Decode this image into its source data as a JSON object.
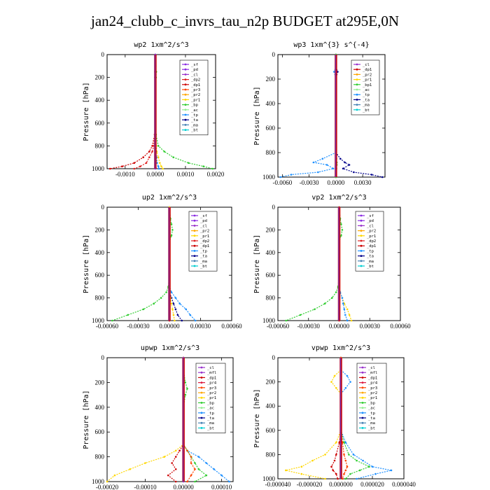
{
  "title": "jan24_clubb_c_invrs_tau_n2p  BUDGET at295E,0N",
  "colors": {
    "sf": "#8a2be2",
    "pd": "#8a2be2",
    "cl": "#9932cc",
    "mfl": "#9932cc",
    "dp1": "#cc0000",
    "dp2": "#e02020",
    "pr1": "#ffd700",
    "pr2": "#ffa500",
    "pr3": "#ff4500",
    "pr4": "#dc143c",
    "bp": "#32cd32",
    "bp1": "#32cd32",
    "ac": "#90ee90",
    "tp": "#1e90ff",
    "ta": "#00008b",
    "ma": "#4682b4",
    "bt": "#00ced1"
  },
  "chart_data": [
    {
      "type": "line",
      "title": "wp2  1xm^2/s^3",
      "ylabel": "Pressure [hPa]",
      "xlim": [
        -0.0016,
        0.002
      ],
      "ylim": [
        1000,
        0
      ],
      "xticks": [
        "-0.0010",
        "0.0000",
        "0.0010",
        "0.0020"
      ],
      "xtick_values": [
        -0.001,
        0.0,
        0.001,
        0.002
      ],
      "yticks": [
        "0",
        "200",
        "400",
        "600",
        "800",
        "1000"
      ],
      "y": [
        0,
        100,
        150,
        200,
        300,
        400,
        500,
        600,
        700,
        800,
        850,
        900,
        950,
        980,
        1000
      ],
      "legend": [
        "_sf",
        "_pd",
        "_cl",
        "_dp2",
        "_dp1",
        "_pr3",
        "_pr2",
        "_pr1",
        "_bp",
        "_ac",
        "_tp",
        "_ta",
        "_ma",
        "_bt"
      ],
      "series": [
        {
          "name": "_bp",
          "key": "bp",
          "values": [
            0,
            1e-05,
            3e-05,
            2e-05,
            0,
            0,
            0,
            0,
            2e-05,
            0.0001,
            0.0003,
            0.0006,
            0.0011,
            0.0016,
            0.0019
          ]
        },
        {
          "name": "_dp1",
          "key": "dp1",
          "values": [
            0,
            0,
            -1e-05,
            -1e-05,
            0,
            0,
            0,
            0,
            -2e-05,
            -0.0001,
            -0.0002,
            -0.0004,
            -0.0007,
            -0.0011,
            -0.0015
          ]
        },
        {
          "name": "_dp2",
          "key": "dp2",
          "values": [
            0,
            0,
            0,
            0,
            0,
            0,
            0,
            0,
            -1e-05,
            -5e-05,
            -0.0001,
            -0.0002,
            -0.0003,
            -0.0005,
            -0.0007
          ]
        },
        {
          "name": "_pr1",
          "key": "pr1",
          "values": [
            0,
            0,
            0,
            0,
            0,
            0,
            0,
            0,
            1e-05,
            3e-05,
            5e-05,
            0.0001,
            0.00015,
            0.0002,
            0.00025
          ]
        },
        {
          "name": "_tp",
          "key": "tp",
          "values": [
            0,
            0,
            0,
            0,
            0,
            0,
            0,
            0,
            0,
            1e-05,
            2e-05,
            4e-05,
            6e-05,
            0.0001,
            0.00012
          ]
        },
        {
          "name": "_pd",
          "key": "pd",
          "values": [
            0,
            0,
            0,
            0,
            0,
            0,
            0,
            0,
            0,
            0,
            0,
            0,
            0,
            0,
            0
          ]
        }
      ]
    },
    {
      "type": "line",
      "title": "wp3  1xm^{3} s^{-4}",
      "ylabel": "Pressure [hPa]",
      "xlim": [
        -0.0065,
        0.0055
      ],
      "ylim": [
        1000,
        0
      ],
      "xticks": [
        "-0.0060",
        "-0.0030",
        "0.0000",
        "0.0030"
      ],
      "xtick_values": [
        -0.006,
        -0.003,
        0.0,
        0.003
      ],
      "yticks": [
        "0",
        "200",
        "400",
        "600",
        "800",
        "1000"
      ],
      "y": [
        0,
        100,
        140,
        200,
        300,
        400,
        500,
        600,
        700,
        800,
        850,
        880,
        900,
        930,
        960,
        980,
        1000
      ],
      "legend": [
        "_cl",
        "_dp1",
        "_pr2",
        "_pr1",
        "_bp1",
        "_ac",
        "_tp",
        "_ta",
        "_ma",
        "_bt"
      ],
      "series": [
        {
          "name": "_tp",
          "key": "tp",
          "values": [
            0,
            0,
            -0.0002,
            0,
            0,
            0,
            0,
            0,
            0,
            0,
            -0.0015,
            -0.0025,
            -0.001,
            -0.0003,
            -0.002,
            -0.005,
            -0.0062
          ]
        },
        {
          "name": "_ta",
          "key": "ta",
          "values": [
            0,
            0,
            0.0002,
            0,
            0,
            0,
            0,
            0,
            0,
            0,
            0.0005,
            0.001,
            0.0015,
            0.0008,
            0.002,
            0.004,
            0.0052
          ]
        },
        {
          "name": "_dp1",
          "key": "dp1",
          "values": [
            0,
            0,
            0,
            0,
            0,
            0,
            0,
            0,
            0,
            0,
            0,
            0,
            0,
            0,
            0,
            0,
            0
          ]
        },
        {
          "name": "_bp1",
          "key": "bp1",
          "values": [
            0,
            0,
            0,
            0,
            0,
            0,
            0,
            0,
            0,
            0,
            5e-05,
            0.0001,
            0.0001,
            5e-05,
            0,
            0,
            0
          ]
        }
      ]
    },
    {
      "type": "line",
      "title": "up2  1xm^2/s^3",
      "ylabel": "Pressure [hPa]",
      "xlim": [
        -0.0006,
        0.0006
      ],
      "ylim": [
        1000,
        0
      ],
      "xticks": [
        "-0.00060",
        "-0.00030",
        "0.00000",
        "0.00030",
        "0.00060"
      ],
      "xtick_values": [
        -0.0006,
        -0.0003,
        0.0,
        0.0003,
        0.0006
      ],
      "yticks": [
        "0",
        "200",
        "400",
        "600",
        "800",
        "1000"
      ],
      "y": [
        0,
        100,
        150,
        200,
        250,
        300,
        400,
        500,
        600,
        700,
        750,
        800,
        850,
        900,
        950,
        1000
      ],
      "legend": [
        "_sf",
        "_pd",
        "_cl",
        "_pr2",
        "_pr1",
        "_dp2",
        "_dp1",
        "_tp",
        "_ta",
        "_ma",
        "_bt"
      ],
      "series": [
        {
          "name": "_dp2",
          "key": "bp",
          "values": [
            0,
            1e-05,
            2e-05,
            3e-05,
            2e-05,
            0,
            0,
            0,
            0,
            -1e-05,
            -3e-05,
            -8e-05,
            -0.00015,
            -0.00025,
            -0.0004,
            -0.00055
          ]
        },
        {
          "name": "_tp",
          "key": "tp",
          "values": [
            0,
            0,
            0,
            0,
            0,
            0,
            0,
            0,
            0,
            0,
            2e-05,
            6e-05,
            0.0001,
            0.00016,
            0.0002,
            0.00025
          ]
        },
        {
          "name": "_ta",
          "key": "ta",
          "values": [
            0,
            0,
            0,
            0,
            0,
            0,
            0,
            0,
            0,
            0,
            0,
            2e-05,
            4e-05,
            6e-05,
            8e-05,
            0.00012
          ]
        },
        {
          "name": "_dp1",
          "key": "dp1",
          "values": [
            0,
            0,
            0,
            0,
            0,
            0,
            0,
            0,
            0,
            0,
            0,
            0,
            0,
            0,
            0,
            0
          ]
        },
        {
          "name": "_pr1",
          "key": "pr1",
          "values": [
            0,
            0,
            0,
            0,
            0,
            0,
            0,
            0,
            0,
            0,
            0,
            1e-05,
            2e-05,
            3e-05,
            4e-05,
            5e-05
          ]
        }
      ]
    },
    {
      "type": "line",
      "title": "vp2  1xm^2/s^3",
      "ylabel": "Pressure [hPa]",
      "xlim": [
        -0.0006,
        0.0006
      ],
      "ylim": [
        1000,
        0
      ],
      "xticks": [
        "-0.00060",
        "-0.00030",
        "0.00000",
        "0.00030",
        "0.00060"
      ],
      "xtick_values": [
        -0.0006,
        -0.0003,
        0.0,
        0.0003,
        0.0006
      ],
      "yticks": [
        "0",
        "200",
        "400",
        "600",
        "800",
        "1000"
      ],
      "y": [
        0,
        100,
        150,
        200,
        250,
        300,
        400,
        500,
        600,
        700,
        750,
        800,
        850,
        900,
        950,
        1000
      ],
      "legend": [
        "_sf",
        "_pd",
        "_cl",
        "_pr2",
        "_pr1",
        "_dp2",
        "_dp1",
        "_tp",
        "_ta",
        "_ma",
        "_bt"
      ],
      "series": [
        {
          "name": "_dp2",
          "key": "bp",
          "values": [
            0,
            1e-05,
            2e-05,
            3e-05,
            2e-05,
            0,
            0,
            0,
            0,
            -1e-05,
            -3e-05,
            -7e-05,
            -0.00014,
            -0.00024,
            -0.00038,
            -0.00052
          ]
        },
        {
          "name": "_pr1",
          "key": "pr1",
          "values": [
            0,
            0,
            0,
            0,
            0,
            0,
            0,
            0,
            0,
            0,
            1e-05,
            3e-05,
            5e-05,
            8e-05,
            0.0001,
            0.00012
          ]
        },
        {
          "name": "_tp",
          "key": "tp",
          "values": [
            0,
            0,
            0,
            0,
            0,
            0,
            0,
            0,
            0,
            0,
            1e-05,
            3e-05,
            4e-05,
            5e-05,
            6e-05,
            8e-05
          ]
        },
        {
          "name": "_dp1",
          "key": "dp1",
          "values": [
            0,
            0,
            0,
            0,
            0,
            0,
            0,
            0,
            0,
            0,
            0,
            0,
            0,
            0,
            0,
            0
          ]
        }
      ]
    },
    {
      "type": "line",
      "title": "upwp  1xm^2/s^3",
      "ylabel": "Pressure [hPa]",
      "xlim": [
        -0.0002,
        0.00013
      ],
      "ylim": [
        1000,
        0
      ],
      "xticks": [
        "-0.00020",
        "-0.00010",
        "0.00000",
        "0.00010"
      ],
      "xtick_values": [
        -0.0002,
        -0.0001,
        0.0,
        0.0001
      ],
      "yticks": [
        "0",
        "200",
        "400",
        "600",
        "800",
        "1000"
      ],
      "y": [
        0,
        100,
        200,
        250,
        300,
        400,
        500,
        600,
        700,
        750,
        800,
        850,
        900,
        950,
        1000
      ],
      "legend": [
        "_cl",
        "_mfl",
        "_dp1",
        "_pr4",
        "_pr3",
        "_pr2",
        "_pr1",
        "_bp",
        "_ac",
        "_tp",
        "_ta",
        "_ma",
        "_bt"
      ],
      "series": [
        {
          "name": "_pr1",
          "key": "pr1",
          "values": [
            0,
            0,
            0,
            0,
            0,
            0,
            0,
            0,
            0,
            -2e-05,
            -5e-05,
            -0.0001,
            -0.00014,
            -0.00018,
            -0.0002
          ]
        },
        {
          "name": "_tp",
          "key": "tp",
          "values": [
            0,
            0,
            0,
            0,
            0,
            0,
            0,
            0,
            0,
            1e-05,
            4e-05,
            6e-05,
            8e-05,
            0.0001,
            0.00012
          ]
        },
        {
          "name": "_bp",
          "key": "bp",
          "values": [
            0,
            0,
            5e-06,
            1e-05,
            5e-06,
            0,
            0,
            0,
            0,
            1e-05,
            2e-05,
            3e-05,
            4e-05,
            6e-05,
            3e-05
          ]
        },
        {
          "name": "_dp1",
          "key": "dp1",
          "values": [
            0,
            0,
            0,
            0,
            0,
            0,
            0,
            0,
            0,
            -1e-05,
            -2e-05,
            -3e-05,
            -2e-05,
            -4e-05,
            -2e-05
          ]
        },
        {
          "name": "_pr3",
          "key": "pr3",
          "values": [
            0,
            0,
            0,
            0,
            0,
            0,
            0,
            0,
            0,
            1e-05,
            2e-05,
            2e-05,
            3e-05,
            2e-05,
            1e-05
          ]
        },
        {
          "name": "_cl",
          "key": "cl",
          "values": [
            0,
            0,
            0,
            0,
            0,
            0,
            0,
            0,
            0,
            0,
            0,
            0,
            0,
            0,
            0
          ]
        }
      ]
    },
    {
      "type": "line",
      "title": "vpwp  1xm^2/s^3",
      "ylabel": "Pressure [hPa]",
      "xlim": [
        -4e-05,
        4e-05
      ],
      "ylim": [
        1000,
        0
      ],
      "xticks": [
        "-0.000040",
        "-0.000020",
        "0.000000",
        "0.000020",
        "0.000040"
      ],
      "xtick_values": [
        -4e-05,
        -2e-05,
        0.0,
        2e-05,
        4e-05
      ],
      "yticks": [
        "0",
        "200",
        "400",
        "600",
        "800",
        "1000"
      ],
      "y": [
        0,
        100,
        150,
        200,
        250,
        300,
        400,
        500,
        600,
        700,
        800,
        850,
        900,
        930,
        960,
        1000
      ],
      "legend": [
        "_cl",
        "_mfl",
        "_dp1",
        "_pr4",
        "_pr3",
        "_pr2",
        "_pr1",
        "_bp",
        "_ac",
        "_tp",
        "_ta",
        "_ma",
        "_bt"
      ],
      "series": [
        {
          "name": "_pr1",
          "key": "pr1",
          "values": [
            0,
            0,
            -4e-06,
            -6e-06,
            -3e-06,
            0,
            0,
            0,
            0,
            -3e-06,
            -1e-05,
            -1.8e-05,
            -2.5e-05,
            -3.5e-05,
            -2.5e-05,
            -1e-05
          ]
        },
        {
          "name": "_tp",
          "key": "tp",
          "values": [
            0,
            0,
            4e-06,
            6e-06,
            3e-06,
            0,
            0,
            0,
            0,
            3e-06,
            8e-06,
            1.4e-05,
            2e-05,
            3.2e-05,
            2.2e-05,
            1e-05
          ]
        },
        {
          "name": "_bp",
          "key": "bp",
          "values": [
            0,
            0,
            0,
            0,
            0,
            0,
            0,
            0,
            0,
            2e-06,
            5e-06,
            1e-05,
            1.8e-05,
            1.2e-05,
            6e-06,
            3e-06
          ]
        },
        {
          "name": "_dp1",
          "key": "dp1",
          "values": [
            0,
            0,
            0,
            0,
            0,
            0,
            0,
            0,
            0,
            -1e-06,
            -3e-06,
            -4e-06,
            -6e-06,
            -5e-06,
            -3e-06,
            -2e-06
          ]
        },
        {
          "name": "_pr3",
          "key": "pr3",
          "values": [
            0,
            0,
            0,
            0,
            0,
            0,
            0,
            0,
            0,
            1e-06,
            2e-06,
            3e-06,
            4e-06,
            3e-06,
            2e-06,
            1e-06
          ]
        }
      ]
    }
  ]
}
